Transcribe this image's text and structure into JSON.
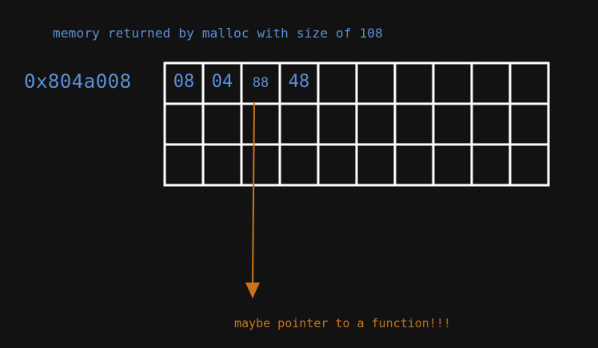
{
  "caption": "memory returned by malloc with size of 108",
  "address": "0x804a008",
  "grid": {
    "rows": 3,
    "cols": 10,
    "bytes": [
      "08",
      "04",
      "88",
      "48"
    ]
  },
  "annotation": "maybe pointer to a function!!!",
  "colors": {
    "background": "#121212",
    "grid": "#ffffff",
    "text_blue": "#5b8fd6",
    "arrow_orange": "#c9741a"
  }
}
